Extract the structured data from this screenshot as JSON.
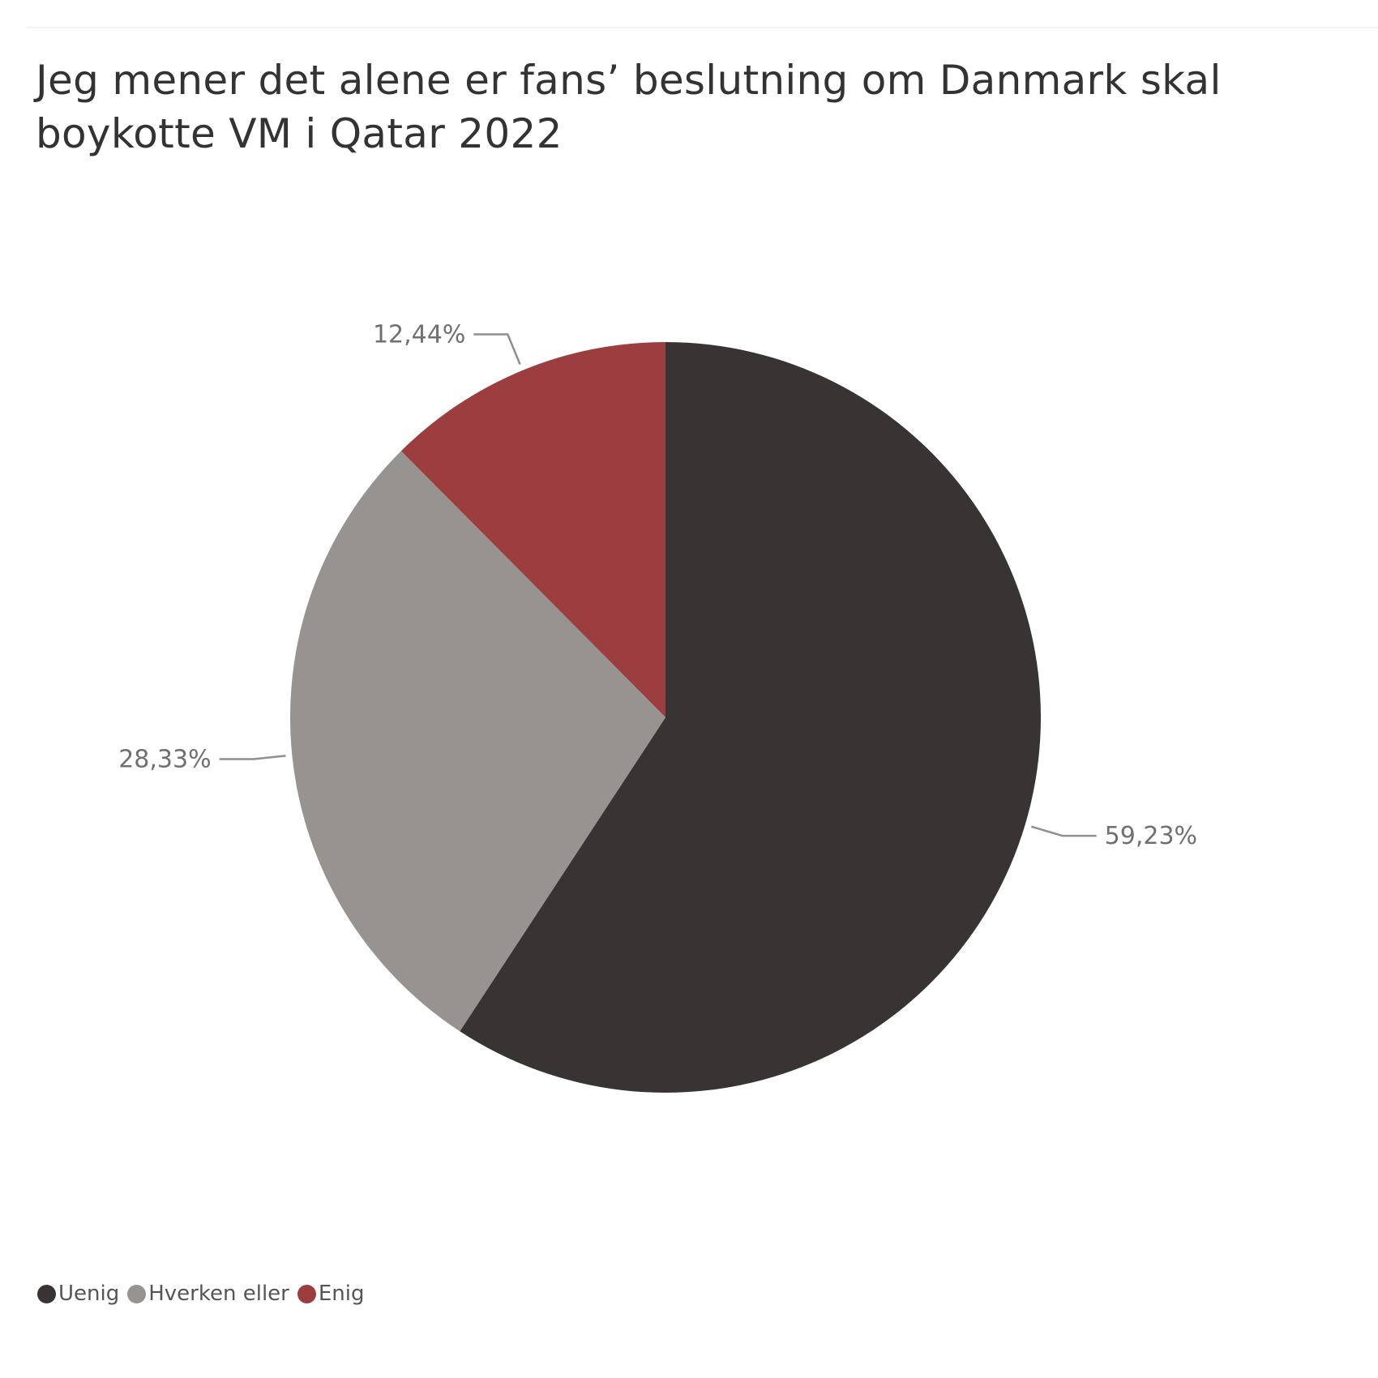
{
  "chart_data": {
    "type": "pie",
    "title": "Jeg mener det alene er fans’ beslutning om Danmark skal boykotte VM i Qatar 2022",
    "categories": [
      "Uenig",
      "Hverken eller",
      "Enig"
    ],
    "values": [
      59.23,
      28.33,
      12.44
    ],
    "labels": [
      "59,23%",
      "28,33%",
      "12,44%"
    ],
    "colors": [
      "#383434",
      "#969391",
      "#9c3d40"
    ],
    "legend_position": "bottom-left",
    "start": "top-clockwise"
  }
}
